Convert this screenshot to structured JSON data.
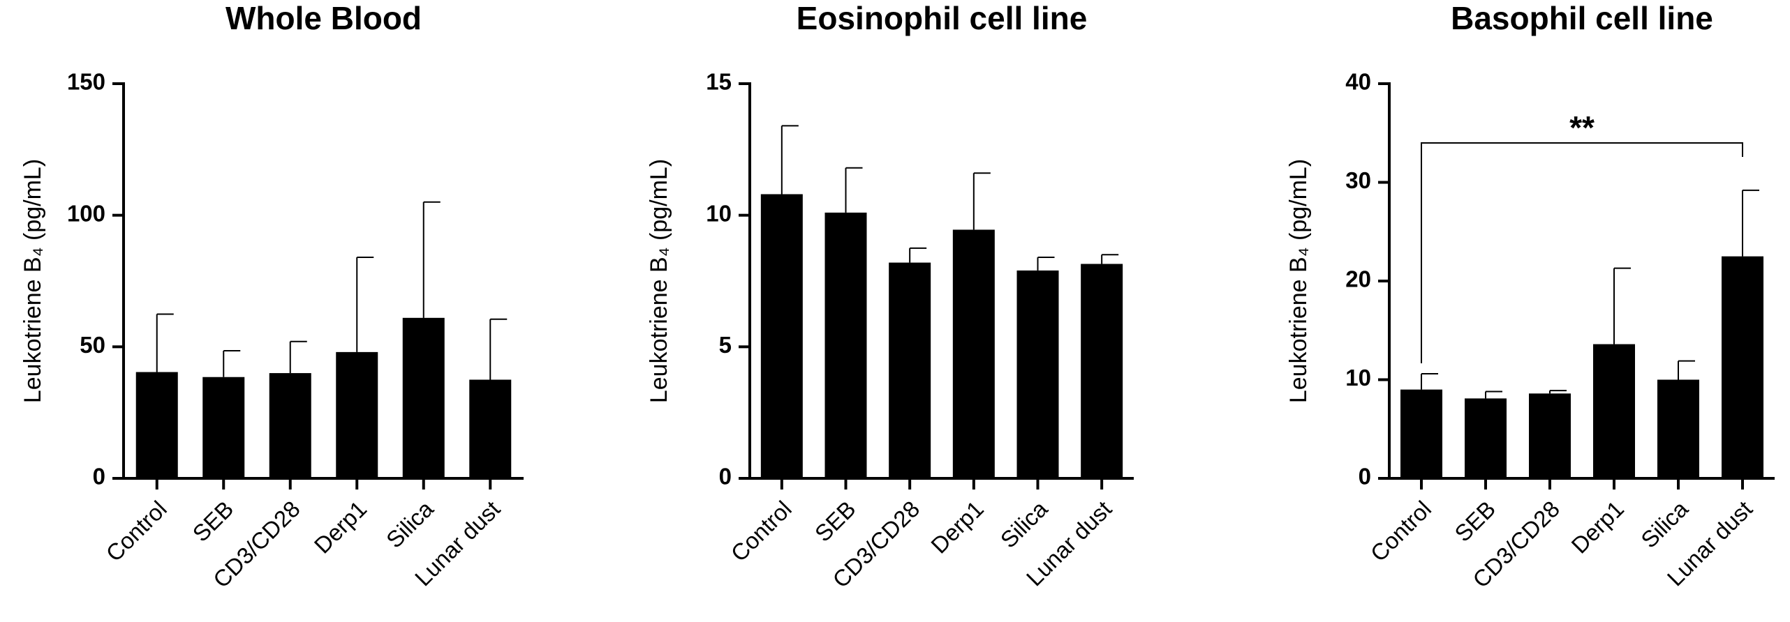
{
  "chart_data": [
    {
      "type": "bar",
      "title": "Whole Blood",
      "y_label": "Leukotriene B₄ (pg/mL)",
      "categories": [
        "Control",
        "SEB",
        "CD3/CD28",
        "Derp1",
        "Silica",
        "Lunar dust"
      ],
      "values": [
        40.4,
        38.5,
        40,
        48,
        61,
        37.5
      ],
      "errors": [
        22,
        10,
        12,
        36,
        44,
        23
      ],
      "color": "#000000",
      "ylim": [
        0,
        150
      ],
      "yticks": [
        0,
        50,
        100,
        150
      ]
    },
    {
      "type": "bar",
      "title": "Eosinophil cell line",
      "y_label": "Leukotriene B₄ (pg/mL)",
      "categories": [
        "Control",
        "SEB",
        "CD3/CD28",
        "Derp1",
        "Silica",
        "Lunar dust"
      ],
      "values": [
        10.8,
        10.1,
        8.2,
        9.45,
        7.9,
        8.15
      ],
      "errors": [
        2.6,
        1.7,
        0.55,
        2.15,
        0.5,
        0.35
      ],
      "color": "#000000",
      "ylim": [
        0,
        15
      ],
      "yticks": [
        0,
        5,
        10,
        15
      ]
    },
    {
      "type": "bar",
      "title": "Basophil cell line",
      "y_label": "Leukotriene B₄ (pg/mL)",
      "categories": [
        "Control",
        "SEB",
        "CD3/CD28",
        "Derp1",
        "Silica",
        "Lunar dust"
      ],
      "values": [
        9,
        8.1,
        8.6,
        13.6,
        10,
        22.5
      ],
      "errors": [
        1.6,
        0.7,
        0.3,
        7.7,
        1.9,
        6.7
      ],
      "color": "#000000",
      "ylim": [
        0,
        40
      ],
      "yticks": [
        0,
        10,
        20,
        30,
        40
      ],
      "annotation": "**"
    }
  ]
}
